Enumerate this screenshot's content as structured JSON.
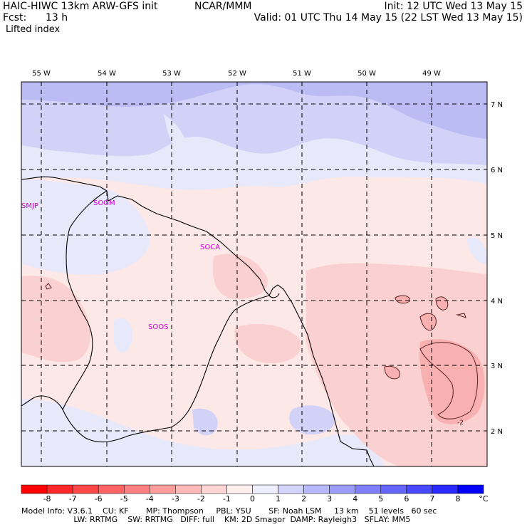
{
  "header": {
    "line1_left": "HAIC-HIWC 13km ARW-GFS init",
    "line1_center": "NCAR/MMM",
    "line1_right": "Init: 12 UTC Wed 13 May 15",
    "line2_left": "Fcst:",
    "line2_hours": "13 h",
    "line2_right": "Valid: 01 UTC Thu 14 May 15 (22 LST Wed 13 May 15)",
    "field": "Lifted index"
  },
  "axes": {
    "lon_labels": [
      "55 W",
      "54 W",
      "53 W",
      "52 W",
      "51 W",
      "50 W",
      "49 W"
    ],
    "lat_labels": [
      "7 N",
      "6 N",
      "5 N",
      "4 N",
      "3 N",
      "2 N"
    ]
  },
  "stations": [
    {
      "id": "SMJP"
    },
    {
      "id": "SOGM"
    },
    {
      "id": "SOCA"
    },
    {
      "id": "SOOS"
    }
  ],
  "contour_labels": [
    "-2"
  ],
  "colorbar": {
    "ticks": [
      "-8",
      "-7",
      "-6",
      "-5",
      "-4",
      "-3",
      "-2",
      "-1",
      "0",
      "1",
      "2",
      "3",
      "4",
      "5",
      "6",
      "7",
      "8"
    ],
    "unit": "°C",
    "colors": [
      "#ff0000",
      "#ff2828",
      "#ff4848",
      "#ff6464",
      "#ff8080",
      "#ff9c9c",
      "#ffb8b8",
      "#ffd4d4",
      "#ffeeee",
      "#eeeeff",
      "#d4d4ff",
      "#b8b8ff",
      "#9c9cff",
      "#8080ff",
      "#6464ff",
      "#4848ff",
      "#2828ff",
      "#0000ff"
    ]
  },
  "colors": {
    "warm_light": "#fde8e8",
    "warm_mid": "#fbd0d0",
    "warm_strong": "#f8b0b0",
    "cool_light": "#e8e8fb",
    "cool_mid": "#d2d2f8",
    "cool_strong": "#bcbcf4",
    "station_color": "#d000d0"
  },
  "footer": {
    "line1": "Model Info: V3.6.1    CU: KF       MP: Thompson     PBL: YSU       SF: Noah LSM     13 km    51 levels   60 sec",
    "line2": "                     LW: RRTMG    SW: RRTMG   DIFF: full    KM: 2D Smagor  DAMP: Rayleigh3   SFLAY: MM5"
  }
}
